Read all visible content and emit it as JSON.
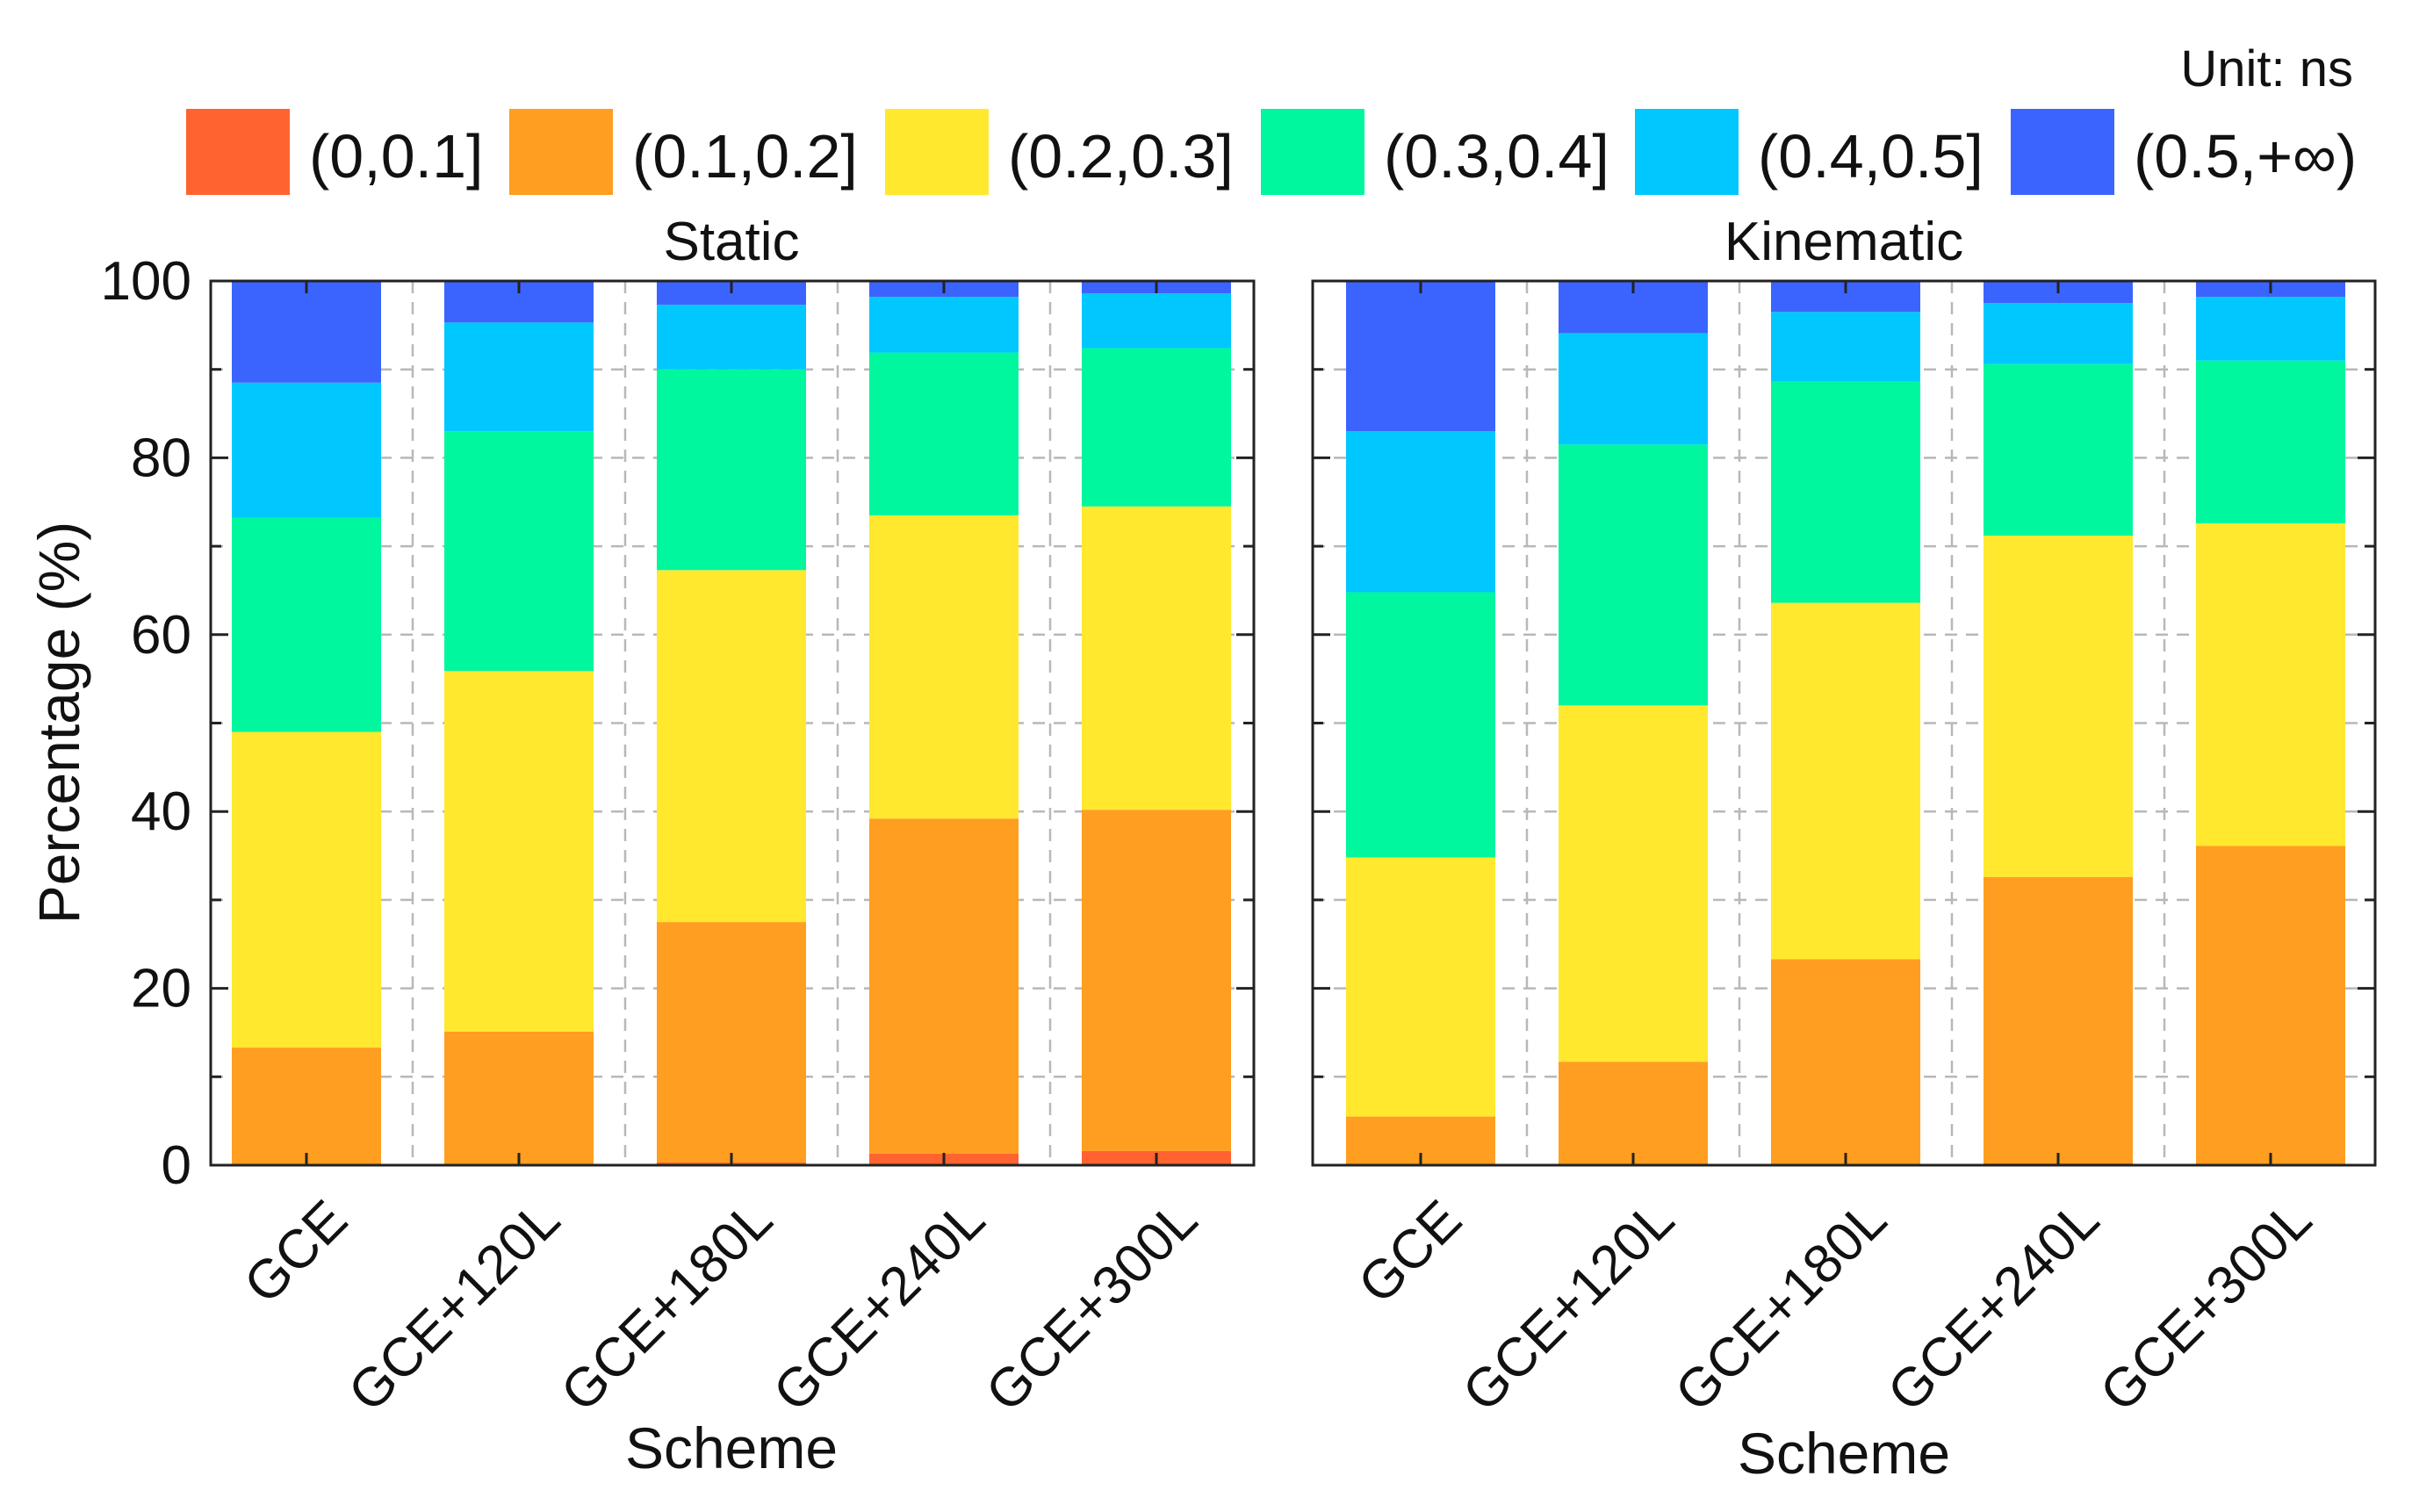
{
  "legend": {
    "unit": "Unit: ns",
    "items": [
      {
        "label": "(0,0.1]",
        "color": "#FF6330"
      },
      {
        "label": "(0.1,0.2]",
        "color": "#FF9E20"
      },
      {
        "label": "(0.2,0.3]",
        "color": "#FFE82E"
      },
      {
        "label": "(0.3,0.4]",
        "color": "#00F79E"
      },
      {
        "label": "(0.4,0.5]",
        "color": "#00C8FF"
      },
      {
        "label": "(0.5,+∞)",
        "color": "#3B64FF"
      }
    ]
  },
  "chart_data": [
    {
      "type": "bar",
      "stacked": true,
      "title": "Static",
      "xlabel": "Scheme",
      "ylabel": "Percentage (%)",
      "ylim": [
        0,
        100
      ],
      "yticks": [
        "0",
        "20",
        "40",
        "60",
        "80",
        "100"
      ],
      "grid": true,
      "categories": [
        "GCE",
        "GCE+120L",
        "GCE+180L",
        "GCE+240L",
        "GCE+300L"
      ],
      "series": [
        {
          "name": "(0,0.1]",
          "values": [
            0.1,
            0.1,
            0.3,
            1.3,
            1.6
          ]
        },
        {
          "name": "(0.1,0.2]",
          "values": [
            13.2,
            15.0,
            27.2,
            37.9,
            38.6
          ]
        },
        {
          "name": "(0.2,0.3]",
          "values": [
            35.7,
            40.8,
            39.8,
            34.3,
            34.3
          ]
        },
        {
          "name": "(0.3,0.4]",
          "values": [
            24.2,
            27.1,
            22.7,
            18.4,
            17.9
          ]
        },
        {
          "name": "(0.4,0.5]",
          "values": [
            15.3,
            12.3,
            7.3,
            6.3,
            6.2
          ]
        },
        {
          "name": "(0.5,+∞)",
          "values": [
            11.5,
            4.7,
            2.7,
            1.8,
            1.4
          ]
        }
      ]
    },
    {
      "type": "bar",
      "stacked": true,
      "title": "Kinematic",
      "xlabel": "Scheme",
      "ylabel": "",
      "ylim": [
        0,
        100
      ],
      "yticks": [],
      "grid": true,
      "categories": [
        "GCE",
        "GCE+120L",
        "GCE+180L",
        "GCE+240L",
        "GCE+300L"
      ],
      "series": [
        {
          "name": "(0,0.1]",
          "values": [
            0,
            0,
            0,
            0.2,
            0
          ]
        },
        {
          "name": "(0.1,0.2]",
          "values": [
            5.5,
            11.7,
            23.3,
            32.4,
            36.1
          ]
        },
        {
          "name": "(0.2,0.3]",
          "values": [
            29.3,
            40.3,
            40.3,
            38.6,
            36.5
          ]
        },
        {
          "name": "(0.3,0.4]",
          "values": [
            30.0,
            29.5,
            25.0,
            19.4,
            18.4
          ]
        },
        {
          "name": "(0.4,0.5]",
          "values": [
            18.2,
            12.6,
            7.9,
            6.9,
            7.2
          ]
        },
        {
          "name": "(0.5,+∞)",
          "values": [
            17.0,
            5.9,
            3.5,
            2.5,
            1.8
          ]
        }
      ]
    }
  ]
}
